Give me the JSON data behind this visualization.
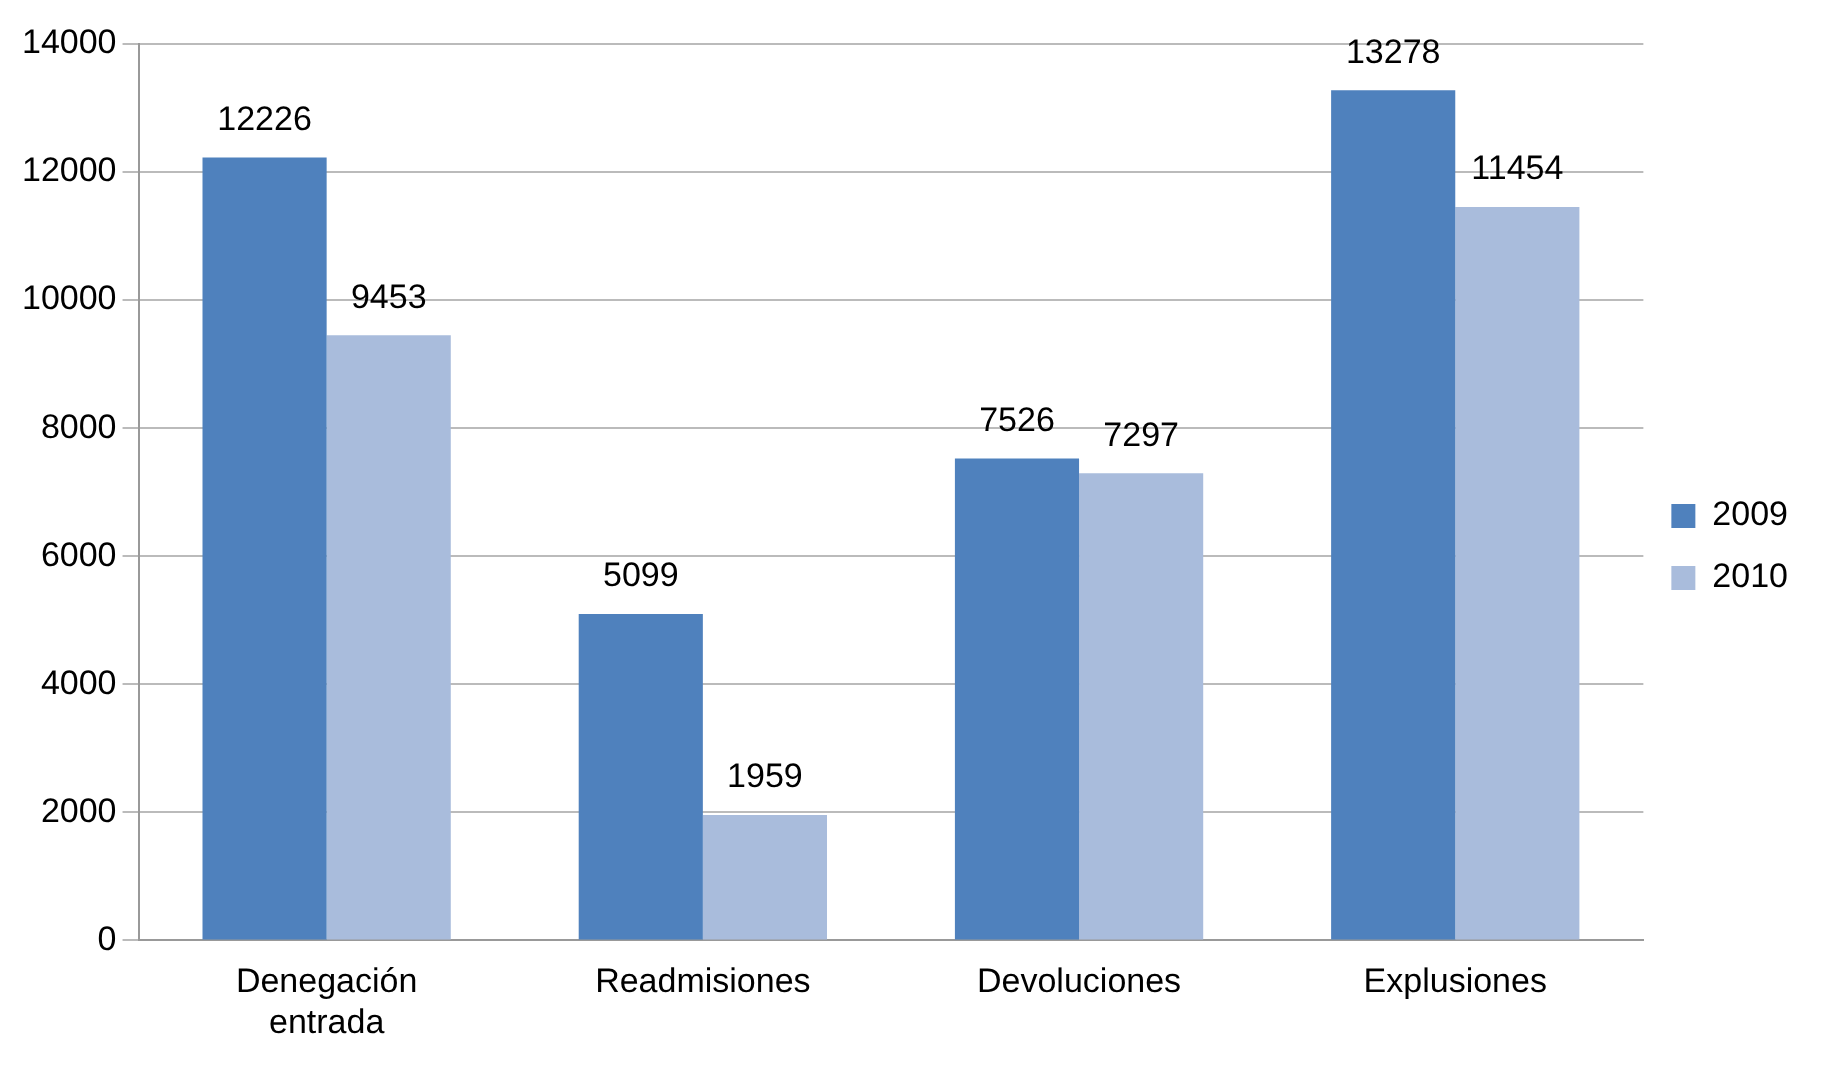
{
  "chart_data": {
    "type": "bar",
    "categories": [
      "Denegación entrada",
      "Readmisiones",
      "Devoluciones",
      "Explusiones"
    ],
    "series": [
      {
        "name": "2009",
        "color": "#4f81bd",
        "values": [
          12226,
          5099,
          7526,
          13278
        ]
      },
      {
        "name": "2010",
        "color": "#a9bcdc",
        "values": [
          9453,
          1959,
          7297,
          11454
        ]
      }
    ],
    "ylim": [
      0,
      14000
    ],
    "yticks": [
      0,
      2000,
      4000,
      6000,
      8000,
      10000,
      12000,
      14000
    ],
    "grid": "y",
    "legend": "right",
    "data_labels": true
  }
}
